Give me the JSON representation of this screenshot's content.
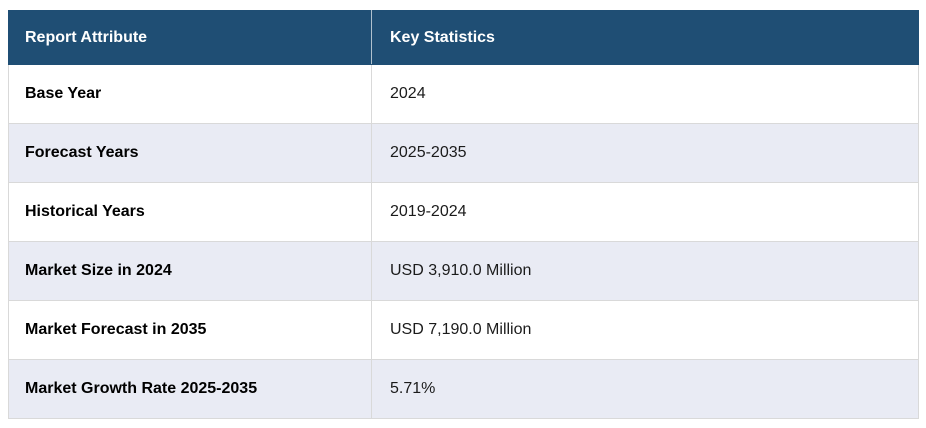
{
  "table": {
    "headers": {
      "attribute": "Report Attribute",
      "value": "Key Statistics"
    },
    "rows": [
      {
        "attribute": "Base Year",
        "value": "2024"
      },
      {
        "attribute": "Forecast Years",
        "value": "2025-2035"
      },
      {
        "attribute": "Historical Years",
        "value": "2019-2024"
      },
      {
        "attribute": "Market Size in 2024",
        "value": "USD 3,910.0 Million"
      },
      {
        "attribute": "Market Forecast in 2035",
        "value": "USD 7,190.0 Million"
      },
      {
        "attribute": "Market Growth Rate 2025-2035",
        "value": "5.71%"
      }
    ],
    "colors": {
      "header_bg": "#1F4E74",
      "header_text": "#FFFFFF",
      "row_bg": "#FFFFFF",
      "row_alt_bg": "#E9EBF4",
      "border": "#D9D9D9",
      "attribute_text": "#000000",
      "value_text": "#1B1B1B"
    }
  }
}
